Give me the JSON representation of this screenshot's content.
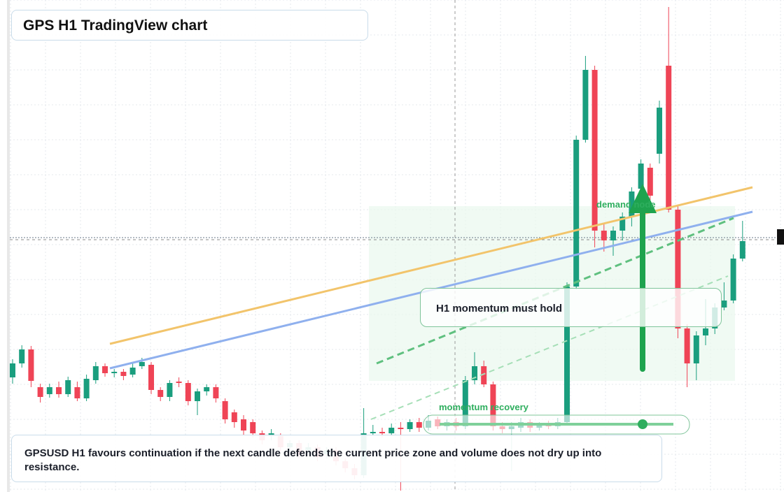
{
  "header": {
    "title": "GPS H1 TradingView chart"
  },
  "chart": {
    "ylim": [
      0,
      704
    ],
    "up_color": "#1a9e7e",
    "down_color": "#ef4456",
    "open": [
      164,
      184,
      204,
      150,
      140,
      150,
      140,
      150,
      134,
      160,
      180,
      170,
      172,
      168,
      180,
      182,
      146,
      136,
      158,
      156,
      130,
      144,
      150,
      130,
      114,
      104,
      100,
      84,
      80,
      80,
      64,
      70,
      60,
      64,
      54,
      60,
      44,
      34,
      24,
      84,
      86,
      84,
      92,
      90,
      100,
      92,
      104,
      94,
      100,
      94,
      160,
      180,
      154,
      94,
      90,
      92,
      100,
      92,
      96,
      94,
      100,
      294,
      504,
      604,
      374,
      360,
      374,
      394,
      434,
      464,
      484,
      610,
      404,
      234,
      184,
      224,
      234,
      264,
      274,
      334
    ],
    "high": [
      190,
      210,
      209,
      155,
      155,
      158,
      165,
      158,
      168,
      186,
      184,
      176,
      176,
      184,
      192,
      186,
      150,
      160,
      164,
      160,
      148,
      154,
      154,
      134,
      118,
      110,
      104,
      88,
      90,
      84,
      74,
      74,
      70,
      68,
      64,
      64,
      48,
      40,
      120,
      96,
      92,
      98,
      100,
      104,
      106,
      110,
      108,
      104,
      106,
      166,
      200,
      188,
      158,
      100,
      100,
      106,
      104,
      100,
      102,
      106,
      300,
      510,
      624,
      610,
      384,
      380,
      400,
      436,
      476,
      470,
      560,
      694,
      410,
      240,
      230,
      276,
      270,
      300,
      340,
      388
    ],
    "low": [
      155,
      178,
      150,
      128,
      135,
      135,
      136,
      130,
      130,
      155,
      165,
      164,
      160,
      164,
      176,
      140,
      130,
      130,
      150,
      124,
      110,
      138,
      128,
      98,
      92,
      82,
      78,
      68,
      74,
      58,
      58,
      48,
      54,
      44,
      48,
      38,
      28,
      18,
      20,
      80,
      78,
      80,
      2,
      86,
      86,
      88,
      90,
      88,
      88,
      90,
      154,
      150,
      88,
      84,
      30,
      86,
      86,
      88,
      90,
      90,
      96,
      290,
      500,
      350,
      344,
      338,
      360,
      380,
      420,
      418,
      470,
      400,
      220,
      150,
      160,
      210,
      226,
      260,
      270,
      330
    ],
    "close": [
      184,
      204,
      159,
      136,
      150,
      140,
      160,
      134,
      162,
      180,
      170,
      172,
      166,
      178,
      186,
      146,
      136,
      156,
      156,
      130,
      144,
      150,
      134,
      104,
      100,
      88,
      84,
      74,
      84,
      64,
      70,
      54,
      64,
      50,
      60,
      44,
      34,
      24,
      84,
      86,
      84,
      92,
      90,
      100,
      92,
      102,
      94,
      100,
      94,
      160,
      180,
      154,
      94,
      90,
      94,
      100,
      92,
      96,
      94,
      100,
      294,
      504,
      604,
      374,
      360,
      374,
      394,
      430,
      470,
      424,
      550,
      404,
      234,
      184,
      224,
      234,
      264,
      274,
      334,
      359
    ]
  },
  "annotations": {
    "zone_label": "demand node",
    "recovery_label": "momentum recovery",
    "callout": "H1 momentum must hold"
  },
  "note": "GPSUSD H1 favours continuation if the next candle defends the current price zone and volume does not dry up into resistance."
}
